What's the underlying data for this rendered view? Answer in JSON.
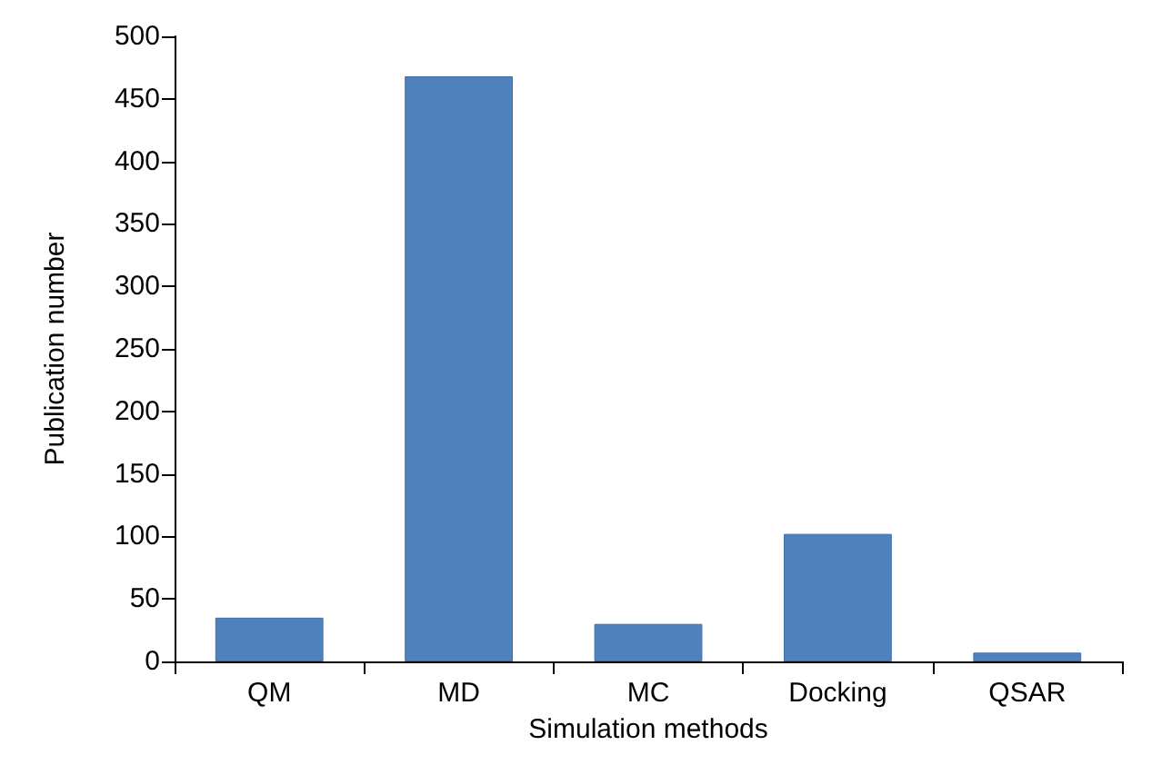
{
  "chart_data": {
    "type": "bar",
    "xlabel": "Simulation methods",
    "ylabel": "Publication number",
    "categories": [
      "QM",
      "MD",
      "MC",
      "Docking",
      "QSAR"
    ],
    "values": [
      35,
      468,
      30,
      102,
      7
    ],
    "color": "#4f81bd",
    "ylim": [
      0,
      500
    ],
    "yticks": [
      0,
      50,
      100,
      150,
      200,
      250,
      300,
      350,
      400,
      450,
      500
    ],
    "grid": false
  }
}
